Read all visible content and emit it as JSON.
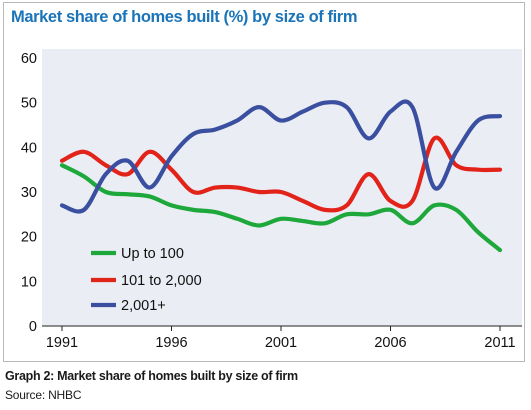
{
  "figure": {
    "caption": "Graph 2: Market share of homes built by size of firm",
    "source": "Source: NHBC"
  },
  "chart_data": {
    "type": "line",
    "title": "Market share of homes built (%) by size of firm",
    "xlabel": "",
    "ylabel": "",
    "xlim": [
      1991,
      2011
    ],
    "ylim": [
      0,
      60
    ],
    "x_ticks": [
      1991,
      1996,
      2001,
      2006,
      2011
    ],
    "x_tick_labels": [
      "1991",
      "1996",
      "2001",
      "2006",
      "2011"
    ],
    "y_ticks": [
      0,
      10,
      20,
      30,
      40,
      50,
      60
    ],
    "y_tick_labels": [
      "0",
      "10",
      "20",
      "30",
      "40",
      "50",
      "60"
    ],
    "grid": false,
    "legend_position": "bottom-left",
    "x": [
      1991,
      1992,
      1993,
      1994,
      1995,
      1996,
      1997,
      1998,
      1999,
      2000,
      2001,
      2002,
      2003,
      2004,
      2005,
      2006,
      2007,
      2008,
      2009,
      2010,
      2011
    ],
    "series": [
      {
        "name": "Up to 100",
        "color": "#1ea83c",
        "values": [
          36,
          33.5,
          30,
          29.5,
          29,
          27,
          26,
          25.5,
          24,
          22.5,
          24,
          23.5,
          23,
          25,
          25,
          26,
          23,
          27,
          26,
          21,
          17
        ]
      },
      {
        "name": "101 to 2,000",
        "color": "#e2231a",
        "values": [
          37,
          39,
          36,
          34,
          39,
          35,
          30,
          31,
          31,
          30,
          30,
          28,
          26,
          27,
          34,
          28,
          28,
          42,
          36,
          35,
          35
        ]
      },
      {
        "name": "2,001+",
        "color": "#3a4fa0",
        "values": [
          27,
          26,
          34,
          37,
          31,
          38,
          43,
          44,
          46,
          49,
          46,
          48,
          50,
          49,
          42,
          48,
          49,
          31,
          39,
          46,
          47
        ]
      }
    ]
  }
}
